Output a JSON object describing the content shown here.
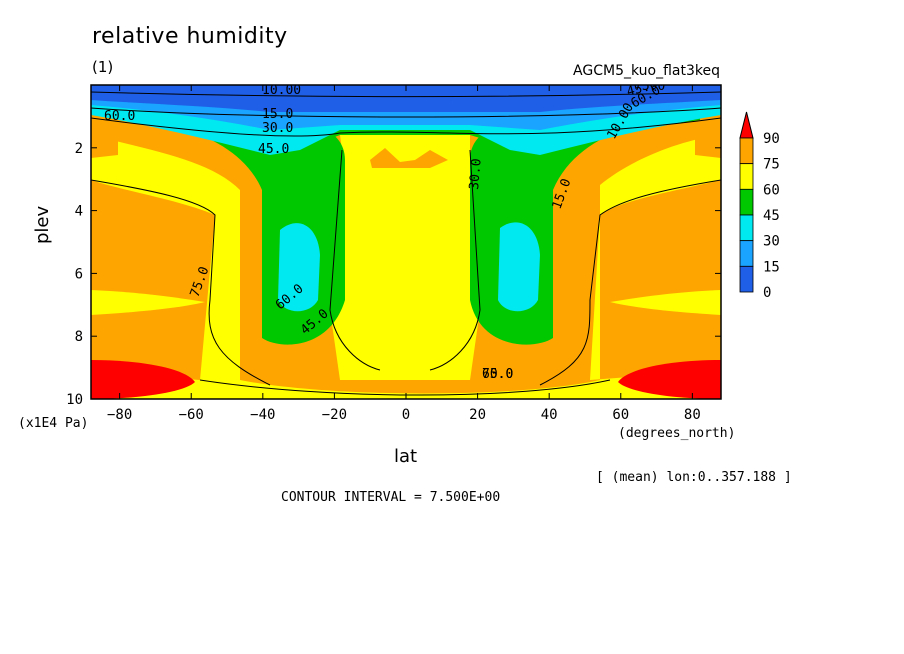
{
  "chart": {
    "title": "relative humidity",
    "subtitle": "(1)",
    "model_label": "AGCM5_kuo_flat3keq",
    "xlabel": "lat",
    "ylabel": "plev",
    "y_unit": "(x1E4 Pa)",
    "x_unit": "(degrees_north)",
    "mean_note": "[ (mean) lon:0..357.188 ]",
    "contour_interval": "CONTOUR INTERVAL = 7.500E+00"
  },
  "chart_data": {
    "type": "heatmap",
    "title": "relative humidity",
    "xlabel": "lat",
    "ylabel": "plev",
    "xlim": [
      -88,
      88
    ],
    "ylim": [
      10,
      0
    ],
    "x_ticks": [
      -80,
      -60,
      -40,
      -20,
      0,
      20,
      40,
      60,
      80
    ],
    "y_ticks": [
      2,
      4,
      6,
      8,
      10
    ],
    "colorbar": {
      "levels": [
        0,
        15,
        30,
        45,
        60,
        75,
        90
      ],
      "colors": [
        "#1f5fe8",
        "#1aa3ff",
        "#00e8f0",
        "#00c800",
        "#ffff00",
        "#ffa500",
        "#ff0000"
      ]
    },
    "contour_labels": [
      "10.00",
      "15.0",
      "30.0",
      "45.0",
      "60.0",
      "75.0",
      "60.0",
      "45.0",
      "30.0",
      "15.0",
      "10.00",
      "60.0",
      "45.0",
      "75.0",
      "60.0",
      "75.0"
    ],
    "grid": false
  }
}
